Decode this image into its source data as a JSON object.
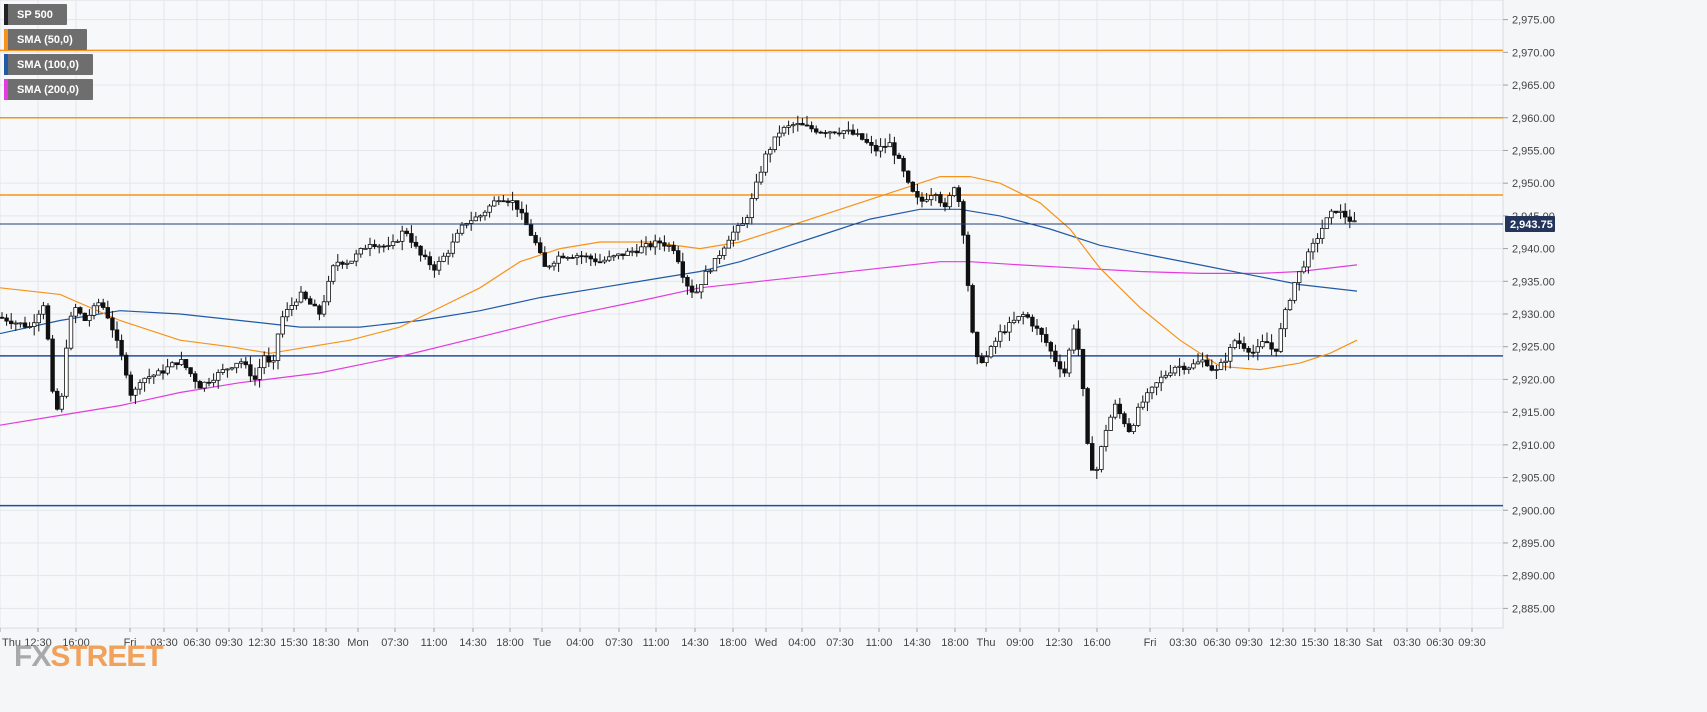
{
  "legend": [
    {
      "label": "SP 500",
      "color": "#222222"
    },
    {
      "label": "SMA (50,0)",
      "color": "#f7931a"
    },
    {
      "label": "SMA (100,0)",
      "color": "#1f5aa6"
    },
    {
      "label": "SMA (200,0)",
      "color": "#e23be0"
    }
  ],
  "logo": {
    "fx": "FX",
    "street": "STREET"
  },
  "current_price": "2,943.75",
  "chart_data": {
    "type": "candlestick",
    "instrument": "SP 500",
    "ylim": [
      2882,
      2978
    ],
    "y_ticks": [
      "2,885.00",
      "2,890.00",
      "2,895.00",
      "2,900.00",
      "2,905.00",
      "2,910.00",
      "2,915.00",
      "2,920.00",
      "2,925.00",
      "2,930.00",
      "2,935.00",
      "2,940.00",
      "2,945.00",
      "2,950.00",
      "2,955.00",
      "2,960.00",
      "2,965.00",
      "2,970.00",
      "2,975.00"
    ],
    "x_ticks": [
      "Thu",
      "12:30",
      "16:00",
      "Fri",
      "03:30",
      "06:30",
      "09:30",
      "12:30",
      "15:30",
      "18:30",
      "Mon",
      "07:30",
      "11:00",
      "14:30",
      "18:00",
      "Tue",
      "04:00",
      "07:30",
      "11:00",
      "14:30",
      "18:00",
      "Wed",
      "04:00",
      "07:30",
      "11:00",
      "14:30",
      "18:00",
      "Thu",
      "09:00",
      "12:30",
      "16:00",
      "Fri",
      "03:30",
      "06:30",
      "09:30",
      "12:30",
      "15:30",
      "18:30",
      "Sat",
      "03:30",
      "06:30",
      "09:30"
    ],
    "horizontal_levels": [
      {
        "value": 2970.3,
        "color": "#f7931a"
      },
      {
        "value": 2960.0,
        "color": "#f7931a"
      },
      {
        "value": 2948.2,
        "color": "#f7931a"
      },
      {
        "value": 2923.6,
        "color": "#1f4fa0"
      },
      {
        "value": 2900.7,
        "color": "#1f4fa0"
      }
    ],
    "last_price": 2943.75,
    "close_path": [
      [
        0,
        2929.5
      ],
      [
        30,
        2928
      ],
      [
        45,
        2932
      ],
      [
        52,
        2918
      ],
      [
        60,
        2914
      ],
      [
        68,
        2928
      ],
      [
        75,
        2931
      ],
      [
        85,
        2929
      ],
      [
        100,
        2932
      ],
      [
        110,
        2929
      ],
      [
        118,
        2925
      ],
      [
        125,
        2922
      ],
      [
        132,
        2917
      ],
      [
        140,
        2920
      ],
      [
        160,
        2921
      ],
      [
        180,
        2923
      ],
      [
        200,
        2919
      ],
      [
        220,
        2921
      ],
      [
        240,
        2923
      ],
      [
        255,
        2920
      ],
      [
        265,
        2924
      ],
      [
        272,
        2921
      ],
      [
        280,
        2929
      ],
      [
        300,
        2933
      ],
      [
        320,
        2930
      ],
      [
        335,
        2938
      ],
      [
        350,
        2938
      ],
      [
        370,
        2941
      ],
      [
        390,
        2940
      ],
      [
        405,
        2943
      ],
      [
        420,
        2939
      ],
      [
        435,
        2937
      ],
      [
        450,
        2940
      ],
      [
        465,
        2944
      ],
      [
        480,
        2945
      ],
      [
        500,
        2948
      ],
      [
        515,
        2947
      ],
      [
        525,
        2944
      ],
      [
        535,
        2941
      ],
      [
        545,
        2937
      ],
      [
        560,
        2939
      ],
      [
        580,
        2939
      ],
      [
        600,
        2938
      ],
      [
        620,
        2939
      ],
      [
        640,
        2940
      ],
      [
        660,
        2941
      ],
      [
        675,
        2940
      ],
      [
        685,
        2935
      ],
      [
        695,
        2933
      ],
      [
        705,
        2936
      ],
      [
        715,
        2938
      ],
      [
        730,
        2942
      ],
      [
        745,
        2944
      ],
      [
        755,
        2949
      ],
      [
        765,
        2954
      ],
      [
        780,
        2958
      ],
      [
        795,
        2959
      ],
      [
        820,
        2958
      ],
      [
        845,
        2958
      ],
      [
        860,
        2957
      ],
      [
        875,
        2955
      ],
      [
        890,
        2956
      ],
      [
        900,
        2953
      ],
      [
        910,
        2949
      ],
      [
        920,
        2947
      ],
      [
        935,
        2949
      ],
      [
        945,
        2946
      ],
      [
        955,
        2950
      ],
      [
        962,
        2945
      ],
      [
        970,
        2931
      ],
      [
        975,
        2923
      ],
      [
        985,
        2923
      ],
      [
        1000,
        2927
      ],
      [
        1015,
        2929
      ],
      [
        1025,
        2930
      ],
      [
        1035,
        2928
      ],
      [
        1045,
        2926
      ],
      [
        1055,
        2923
      ],
      [
        1065,
        2921
      ],
      [
        1075,
        2929
      ],
      [
        1082,
        2920
      ],
      [
        1088,
        2909
      ],
      [
        1095,
        2905
      ],
      [
        1105,
        2912
      ],
      [
        1115,
        2916
      ],
      [
        1130,
        2912
      ],
      [
        1140,
        2916
      ],
      [
        1150,
        2918
      ],
      [
        1160,
        2920
      ],
      [
        1175,
        2922
      ],
      [
        1190,
        2922
      ],
      [
        1205,
        2923
      ],
      [
        1215,
        2921
      ],
      [
        1225,
        2923
      ],
      [
        1235,
        2926
      ],
      [
        1245,
        2925
      ],
      [
        1255,
        2924
      ],
      [
        1265,
        2926
      ],
      [
        1275,
        2924
      ],
      [
        1285,
        2930
      ],
      [
        1295,
        2935
      ],
      [
        1305,
        2938
      ],
      [
        1315,
        2941
      ],
      [
        1325,
        2944
      ],
      [
        1335,
        2946
      ],
      [
        1345,
        2945
      ],
      [
        1355,
        2943.75
      ]
    ],
    "sma_50": [
      [
        0,
        2934
      ],
      [
        60,
        2933
      ],
      [
        120,
        2929
      ],
      [
        180,
        2926
      ],
      [
        230,
        2925
      ],
      [
        270,
        2924
      ],
      [
        310,
        2925
      ],
      [
        350,
        2926
      ],
      [
        400,
        2928
      ],
      [
        440,
        2931
      ],
      [
        480,
        2934
      ],
      [
        520,
        2938
      ],
      [
        560,
        2940
      ],
      [
        600,
        2941
      ],
      [
        650,
        2941
      ],
      [
        700,
        2940
      ],
      [
        740,
        2941
      ],
      [
        780,
        2943
      ],
      [
        820,
        2945
      ],
      [
        860,
        2947
      ],
      [
        900,
        2949
      ],
      [
        940,
        2951
      ],
      [
        970,
        2951
      ],
      [
        1000,
        2950
      ],
      [
        1040,
        2947
      ],
      [
        1070,
        2943
      ],
      [
        1100,
        2937
      ],
      [
        1140,
        2931
      ],
      [
        1180,
        2926
      ],
      [
        1220,
        2922
      ],
      [
        1260,
        2921.5
      ],
      [
        1300,
        2922.5
      ],
      [
        1330,
        2924
      ],
      [
        1357,
        2926
      ]
    ],
    "sma_100": [
      [
        0,
        2927
      ],
      [
        60,
        2929
      ],
      [
        120,
        2930.5
      ],
      [
        180,
        2930
      ],
      [
        240,
        2929
      ],
      [
        300,
        2928
      ],
      [
        360,
        2928
      ],
      [
        420,
        2929
      ],
      [
        480,
        2930.5
      ],
      [
        540,
        2932.5
      ],
      [
        600,
        2934
      ],
      [
        660,
        2935.5
      ],
      [
        700,
        2936.5
      ],
      [
        740,
        2938
      ],
      [
        780,
        2940
      ],
      [
        820,
        2942
      ],
      [
        870,
        2944.5
      ],
      [
        920,
        2946
      ],
      [
        960,
        2946
      ],
      [
        1000,
        2945
      ],
      [
        1050,
        2943
      ],
      [
        1100,
        2940.5
      ],
      [
        1150,
        2939
      ],
      [
        1200,
        2937.5
      ],
      [
        1250,
        2936
      ],
      [
        1300,
        2934.5
      ],
      [
        1357,
        2933.5
      ]
    ],
    "sma_200": [
      [
        0,
        2913
      ],
      [
        60,
        2914.5
      ],
      [
        120,
        2916
      ],
      [
        180,
        2918
      ],
      [
        240,
        2919.5
      ],
      [
        320,
        2921
      ],
      [
        400,
        2923.5
      ],
      [
        480,
        2926.5
      ],
      [
        560,
        2929.5
      ],
      [
        640,
        2932
      ],
      [
        700,
        2934
      ],
      [
        760,
        2935
      ],
      [
        820,
        2936
      ],
      [
        880,
        2937
      ],
      [
        940,
        2938
      ],
      [
        970,
        2938
      ],
      [
        1020,
        2937.5
      ],
      [
        1080,
        2937
      ],
      [
        1140,
        2936.5
      ],
      [
        1200,
        2936.2
      ],
      [
        1260,
        2936.2
      ],
      [
        1300,
        2936.5
      ],
      [
        1357,
        2937.5
      ]
    ]
  }
}
